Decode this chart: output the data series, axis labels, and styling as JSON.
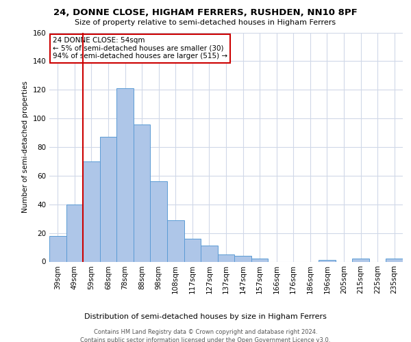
{
  "title": "24, DONNE CLOSE, HIGHAM FERRERS, RUSHDEN, NN10 8PF",
  "subtitle": "Size of property relative to semi-detached houses in Higham Ferrers",
  "xlabel": "Distribution of semi-detached houses by size in Higham Ferrers",
  "ylabel": "Number of semi-detached properties",
  "categories": [
    "39sqm",
    "49sqm",
    "59sqm",
    "68sqm",
    "78sqm",
    "88sqm",
    "98sqm",
    "108sqm",
    "117sqm",
    "127sqm",
    "137sqm",
    "147sqm",
    "157sqm",
    "166sqm",
    "176sqm",
    "186sqm",
    "196sqm",
    "205sqm",
    "215sqm",
    "225sqm",
    "235sqm"
  ],
  "values": [
    18,
    40,
    70,
    87,
    121,
    96,
    56,
    29,
    16,
    11,
    5,
    4,
    2,
    0,
    0,
    0,
    1,
    0,
    2,
    0,
    2
  ],
  "bar_color": "#aec6e8",
  "bar_edge_color": "#5b9bd5",
  "annotation_text_lines": [
    "24 DONNE CLOSE: 54sqm",
    "← 5% of semi-detached houses are smaller (30)",
    "94% of semi-detached houses are larger (515) →"
  ],
  "ylim": [
    0,
    160
  ],
  "yticks": [
    0,
    20,
    40,
    60,
    80,
    100,
    120,
    140,
    160
  ],
  "footer_line1": "Contains HM Land Registry data © Crown copyright and database right 2024.",
  "footer_line2": "Contains public sector information licensed under the Open Government Licence v3.0.",
  "background_color": "#ffffff",
  "grid_color": "#d0d8e8",
  "annotation_box_color": "#ffffff",
  "annotation_box_edge_color": "#cc0000",
  "vline_color": "#cc0000",
  "title_fontsize": 9.5,
  "subtitle_fontsize": 8.0,
  "ylabel_fontsize": 7.5,
  "xlabel_fontsize": 8.0,
  "tick_fontsize": 7.5,
  "footer_fontsize": 6.0,
  "ann_fontsize": 7.5
}
